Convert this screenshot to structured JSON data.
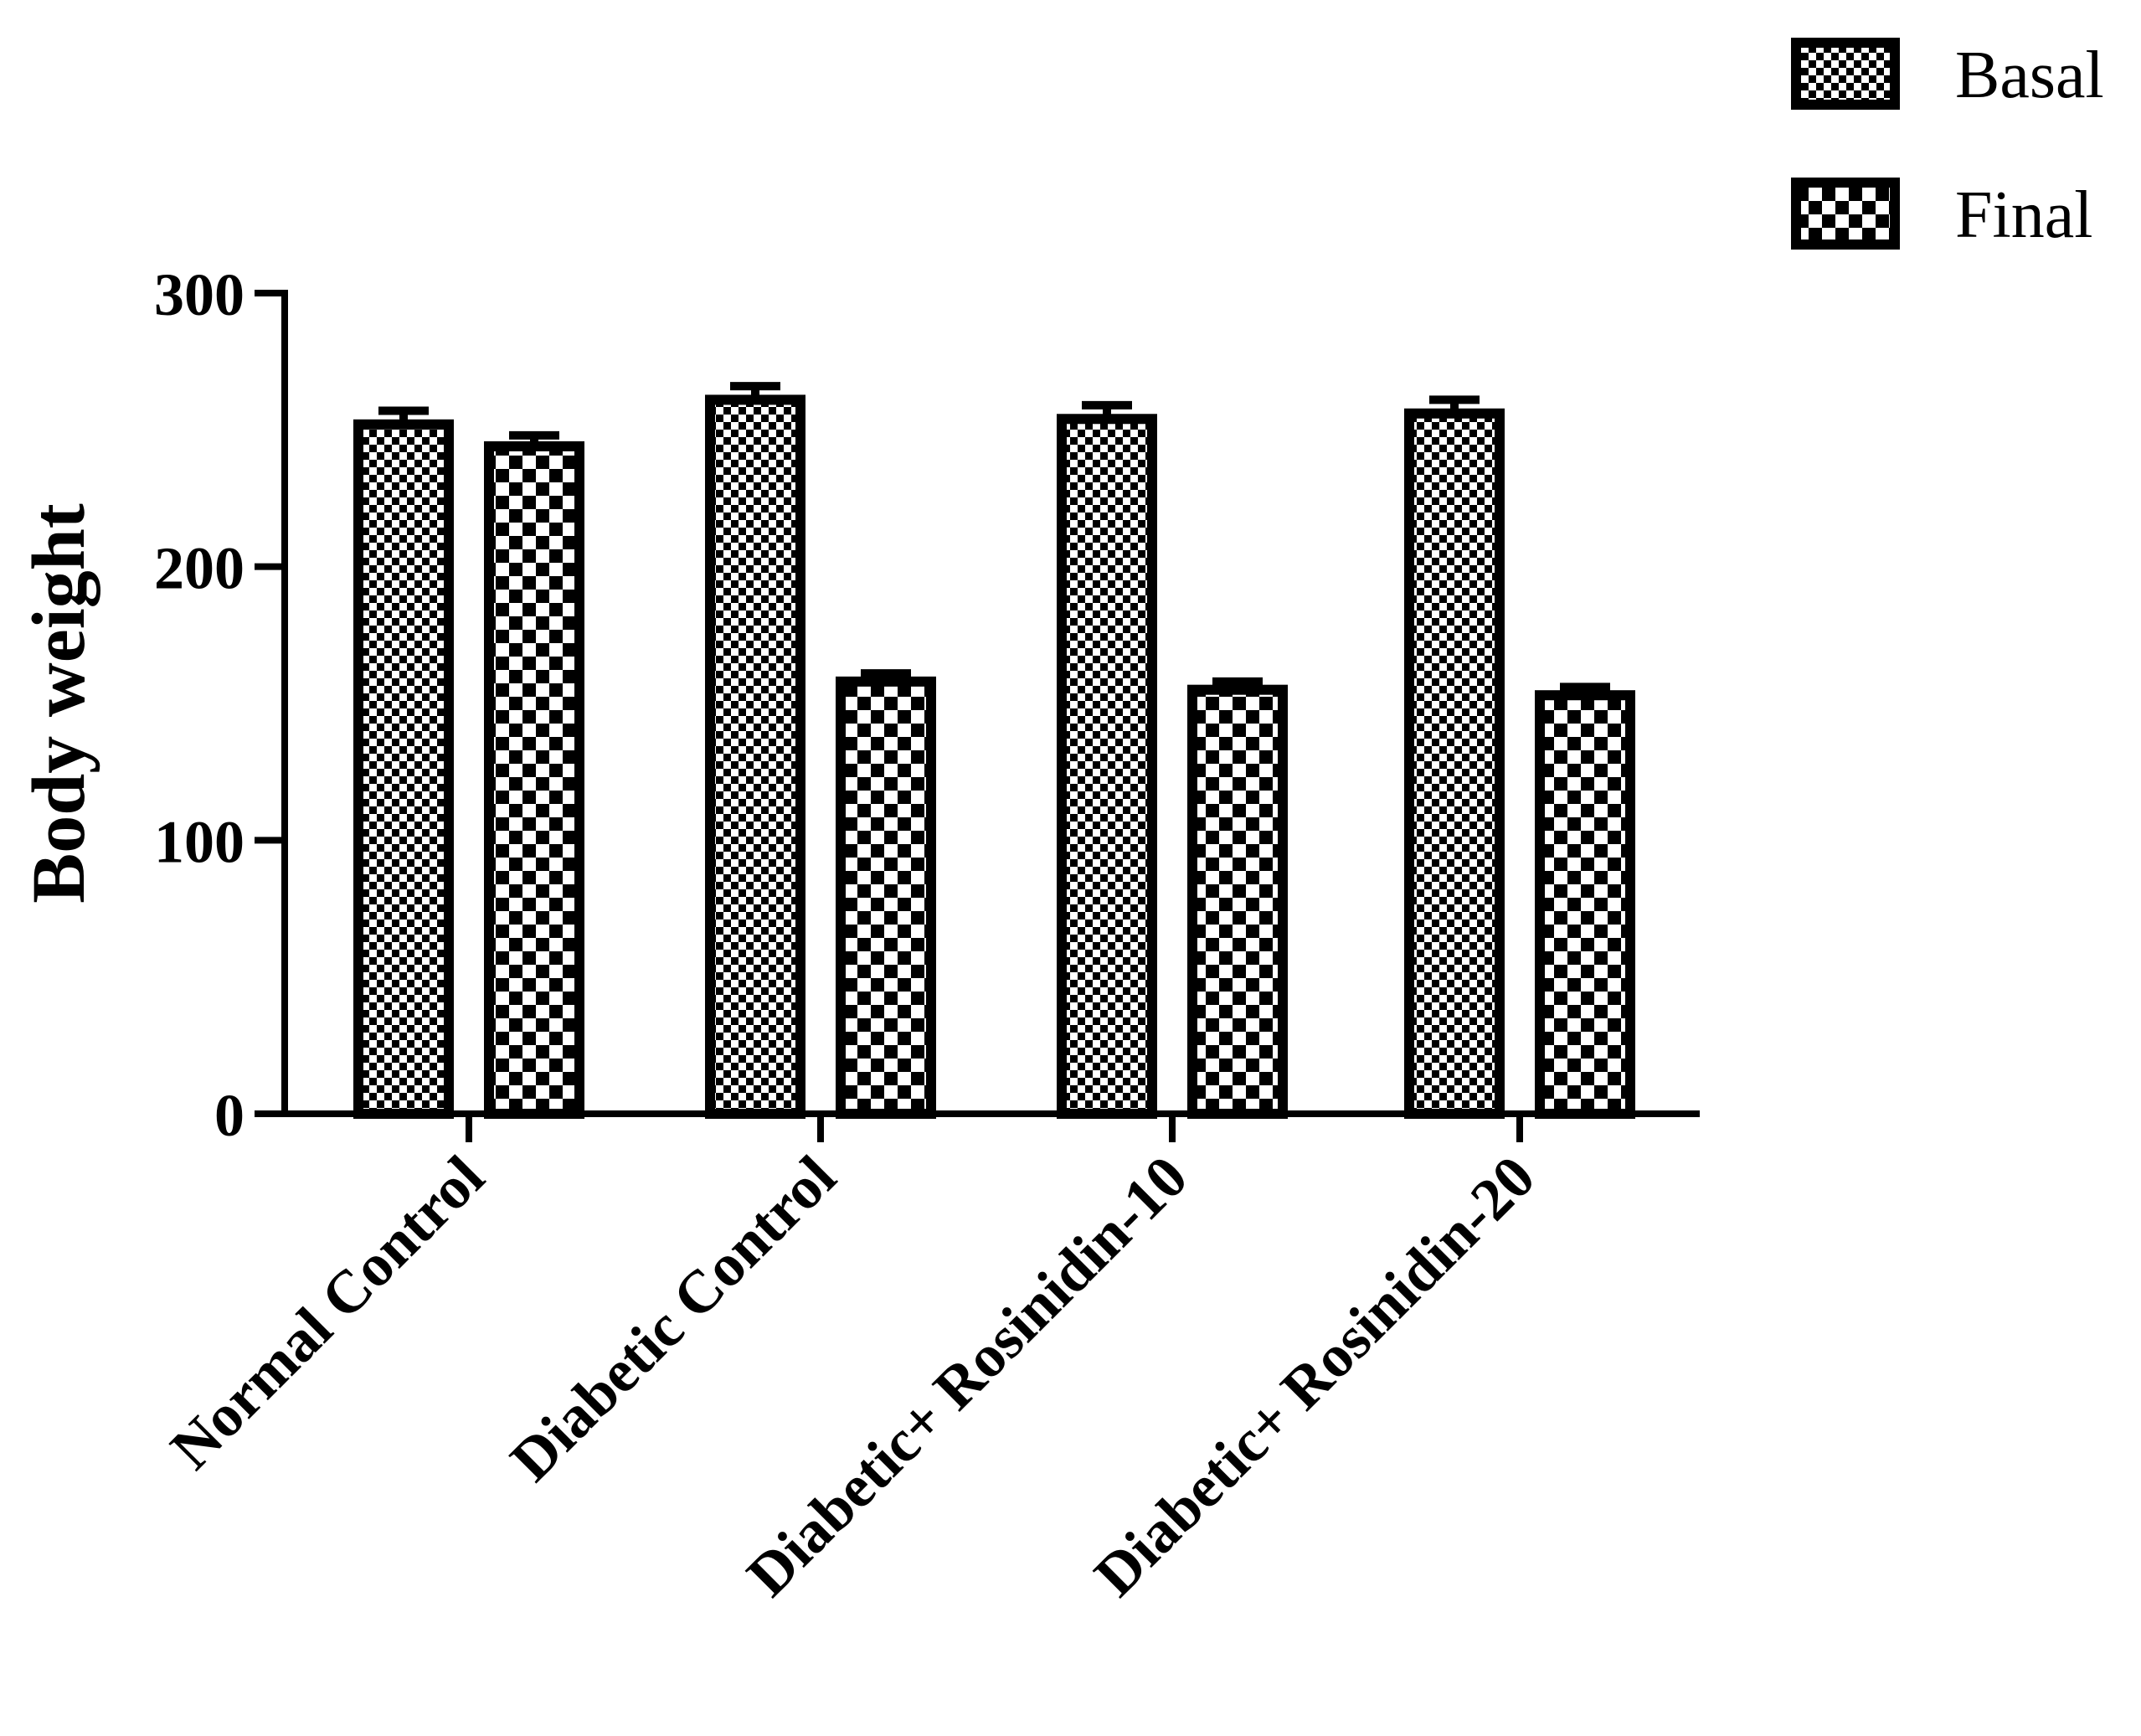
{
  "chart_data": {
    "type": "bar",
    "title": "",
    "xlabel": "",
    "ylabel": "Body weight",
    "ylim": [
      0,
      300
    ],
    "yticks": [
      0,
      100,
      200,
      300
    ],
    "categories": [
      "Normal Control",
      "Diabetic Control",
      "Diabetic+ Rosinidin-10",
      "Diabetic+ Rosinidin-20"
    ],
    "series": [
      {
        "name": "Basal",
        "values": [
          252,
          261,
          254,
          256
        ],
        "errors": [
          5,
          5,
          5,
          5
        ],
        "pattern": "fine-checker"
      },
      {
        "name": "Final",
        "values": [
          244,
          158,
          155,
          153
        ],
        "errors": [
          4,
          3,
          3,
          3
        ],
        "pattern": "coarse-checker"
      }
    ],
    "legend_position": "top-right",
    "grid": false,
    "colors": {
      "ink": "#000000",
      "fill": "#ffffff"
    }
  }
}
